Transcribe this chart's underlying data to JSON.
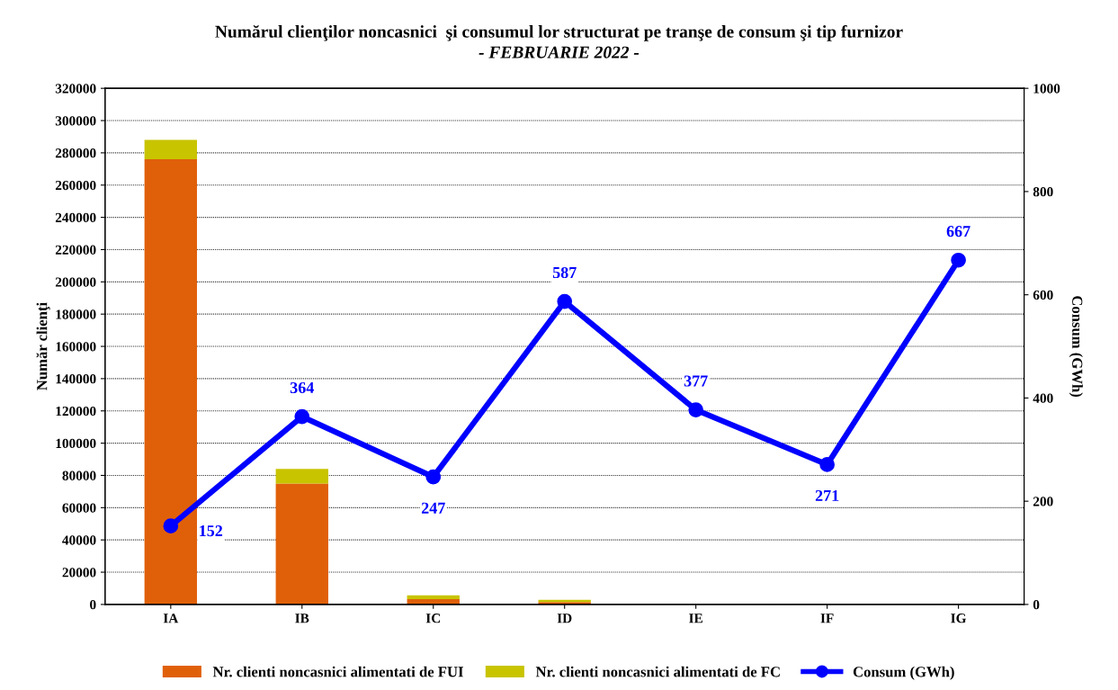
{
  "chart_data": {
    "type": "bar",
    "title": "Numărul clienţilor noncasnici  şi consumul lor structurat pe tranşe de consum şi tip furnizor",
    "subtitle": "- FEBRUARIE 2022 -",
    "ylabel": "Număr clienţi",
    "y2label": "Consum (GWh)",
    "categories": [
      "IA",
      "IB",
      "IC",
      "ID",
      "IE",
      "IF",
      "IG"
    ],
    "stacked": true,
    "series": [
      {
        "name": "Nr. clienti noncasnici alimentati de FUI",
        "color": "#e0600a",
        "values": [
          276000,
          75000,
          3300,
          1500,
          0,
          0,
          0
        ]
      },
      {
        "name": "Nr. clienti noncasnici alimentati de FC",
        "color": "#c8c400",
        "values": [
          12000,
          9000,
          2300,
          1300,
          null,
          null,
          null
        ]
      },
      {
        "name": "Consum (GWh)",
        "type": "line",
        "axis": "y2",
        "color": "#0000ff",
        "marker": "circle",
        "values": [
          152,
          364,
          247,
          587,
          377,
          271,
          667
        ],
        "value_labels": [
          "152",
          "364",
          "247",
          "587",
          "377",
          "271",
          "667"
        ]
      }
    ],
    "ylim": [
      0,
      320000
    ],
    "yticks": [
      0,
      20000,
      40000,
      60000,
      80000,
      100000,
      120000,
      140000,
      160000,
      180000,
      200000,
      220000,
      240000,
      260000,
      280000,
      300000,
      320000
    ],
    "y2lim": [
      0,
      1000
    ],
    "y2ticks": [
      0,
      200,
      400,
      600,
      800,
      1000
    ],
    "grid": "y",
    "legend": "bottom"
  }
}
